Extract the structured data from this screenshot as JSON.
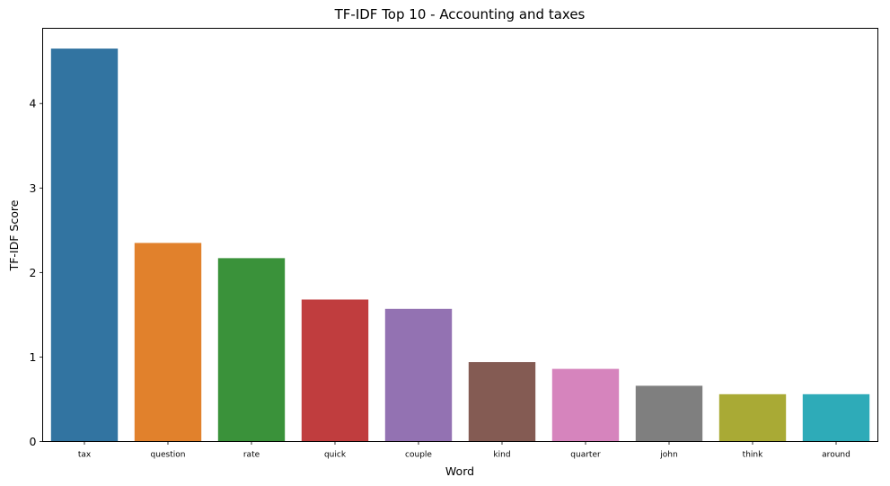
{
  "chart_data": {
    "type": "bar",
    "title": "TF-IDF Top 10 - Accounting and taxes",
    "xlabel": "Word",
    "ylabel": "TF-IDF Score",
    "categories": [
      "tax",
      "question",
      "rate",
      "quick",
      "couple",
      "kind",
      "quarter",
      "john",
      "think",
      "around"
    ],
    "values": [
      4.65,
      2.35,
      2.17,
      1.68,
      1.57,
      0.94,
      0.86,
      0.66,
      0.56,
      0.56
    ],
    "colors": [
      "#3274a1",
      "#e1812c",
      "#3a923a",
      "#c03d3e",
      "#9372b2",
      "#845b53",
      "#d684bd",
      "#7f7f7f",
      "#a9aa35",
      "#2eabb8"
    ],
    "ylim": [
      0,
      4.89
    ],
    "yticks": [
      0,
      1,
      2,
      3,
      4
    ],
    "grid": false,
    "legend": "none"
  }
}
